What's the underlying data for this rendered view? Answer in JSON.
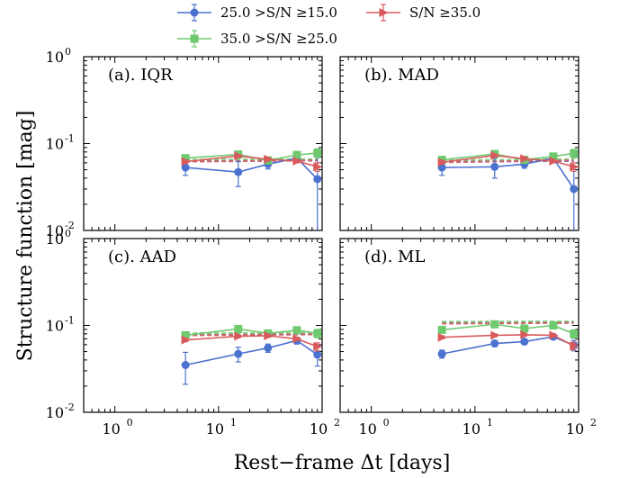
{
  "chart_data": {
    "type": "line",
    "xscale": "log",
    "yscale": "log",
    "xlim": [
      0.5,
      100
    ],
    "ylim": [
      0.01,
      1
    ],
    "x_ticks": [
      1,
      10,
      100
    ],
    "x_tick_labels": [
      "10",
      "10",
      "10"
    ],
    "x_tick_exponents": [
      "0",
      "1",
      "2"
    ],
    "y_ticks": [
      0.01,
      0.1,
      1
    ],
    "y_tick_labels": [
      "10",
      "10",
      "10"
    ],
    "y_tick_exponents": [
      "-2",
      "-1",
      "0"
    ],
    "xlabel": "Rest−frame Δt [days]",
    "ylabel": "Structure function [mag]",
    "grid": false,
    "legend": {
      "placement": "top-outside",
      "entries": [
        {
          "label": "25.0 >S/N ≥15.0",
          "color": "#4c72d0",
          "marker": "circle"
        },
        {
          "label": "35.0 >S/N ≥25.0",
          "color": "#6fc96f",
          "marker": "square"
        },
        {
          "label": "S/N ≥35.0",
          "color": "#d9595c",
          "marker": "triangle-right"
        }
      ]
    },
    "panels": [
      {
        "label": "(a). IQR",
        "series": [
          {
            "name": "25.0 >S/N ≥15.0",
            "color": "#4c72d0",
            "marker": "circle",
            "x": [
              4.8,
              15.5,
              30.0,
              57.0,
              90.0
            ],
            "y": [
              0.053,
              0.047,
              0.058,
              0.068,
              0.039
            ],
            "err": [
              0.01,
              0.015,
              0.007,
              0.006,
              0.03
            ]
          },
          {
            "name": "35.0 >S/N ≥25.0",
            "color": "#6fc96f",
            "marker": "square",
            "x": [
              4.8,
              15.5,
              30.0,
              57.0,
              90.0
            ],
            "y": [
              0.068,
              0.075,
              0.064,
              0.074,
              0.078
            ],
            "err": [
              0.004,
              0.004,
              0.003,
              0.004,
              0.009
            ]
          },
          {
            "name": "S/N ≥35.0",
            "color": "#d9595c",
            "marker": "triangle-right",
            "x": [
              4.8,
              15.5,
              30.0,
              57.0,
              90.0
            ],
            "y": [
              0.062,
              0.072,
              0.066,
              0.063,
              0.054
            ],
            "err": [
              0.003,
              0.003,
              0.003,
              0.003,
              0.006
            ]
          }
        ],
        "dashed": [
          {
            "color": "#4c72d0",
            "x": [
              4.8,
              90.0
            ],
            "y": [
              0.063,
              0.064
            ]
          },
          {
            "color": "#6fc96f",
            "x": [
              4.8,
              90.0
            ],
            "y": [
              0.065,
              0.066
            ]
          },
          {
            "color": "#d9595c",
            "x": [
              4.8,
              90.0
            ],
            "y": [
              0.062,
              0.064
            ]
          }
        ]
      },
      {
        "label": "(b). MAD",
        "series": [
          {
            "name": "25.0 >S/N ≥15.0",
            "color": "#4c72d0",
            "marker": "circle",
            "x": [
              4.8,
              15.5,
              30.0,
              57.0,
              90.0
            ],
            "y": [
              0.053,
              0.054,
              0.058,
              0.068,
              0.03
            ],
            "err": [
              0.01,
              0.014,
              0.006,
              0.006,
              0.025
            ]
          },
          {
            "name": "35.0 >S/N ≥25.0",
            "color": "#6fc96f",
            "marker": "square",
            "x": [
              4.8,
              15.5,
              30.0,
              57.0,
              90.0
            ],
            "y": [
              0.065,
              0.076,
              0.065,
              0.071,
              0.077
            ],
            "err": [
              0.004,
              0.004,
              0.003,
              0.004,
              0.009
            ]
          },
          {
            "name": "S/N ≥35.0",
            "color": "#d9595c",
            "marker": "triangle-right",
            "x": [
              4.8,
              15.5,
              30.0,
              57.0,
              90.0
            ],
            "y": [
              0.061,
              0.073,
              0.067,
              0.063,
              0.054
            ],
            "err": [
              0.003,
              0.003,
              0.003,
              0.003,
              0.006
            ]
          }
        ],
        "dashed": [
          {
            "color": "#4c72d0",
            "x": [
              4.8,
              90.0
            ],
            "y": [
              0.062,
              0.063
            ]
          },
          {
            "color": "#6fc96f",
            "x": [
              4.8,
              90.0
            ],
            "y": [
              0.064,
              0.066
            ]
          },
          {
            "color": "#d9595c",
            "x": [
              4.8,
              90.0
            ],
            "y": [
              0.061,
              0.064
            ]
          }
        ]
      },
      {
        "label": "(c). AAD",
        "series": [
          {
            "name": "25.0 >S/N ≥15.0",
            "color": "#4c72d0",
            "marker": "circle",
            "x": [
              4.8,
              15.5,
              30.0,
              57.0,
              90.0
            ],
            "y": [
              0.035,
              0.047,
              0.055,
              0.067,
              0.046
            ],
            "err": [
              0.014,
              0.009,
              0.006,
              0.006,
              0.012
            ]
          },
          {
            "name": "35.0 >S/N ≥25.0",
            "color": "#6fc96f",
            "marker": "square",
            "x": [
              4.8,
              15.5,
              30.0,
              57.0,
              90.0
            ],
            "y": [
              0.077,
              0.091,
              0.081,
              0.088,
              0.081
            ],
            "err": [
              0.004,
              0.005,
              0.004,
              0.004,
              0.009
            ]
          },
          {
            "name": "S/N ≥35.0",
            "color": "#d9595c",
            "marker": "triangle-right",
            "x": [
              4.8,
              15.5,
              30.0,
              57.0,
              90.0
            ],
            "y": [
              0.068,
              0.075,
              0.076,
              0.07,
              0.057
            ],
            "err": [
              0.003,
              0.003,
              0.003,
              0.003,
              0.006
            ]
          }
        ],
        "dashed": [
          {
            "color": "#4c72d0",
            "x": [
              4.8,
              90.0
            ],
            "y": [
              0.078,
              0.079
            ]
          },
          {
            "color": "#6fc96f",
            "x": [
              4.8,
              90.0
            ],
            "y": [
              0.081,
              0.082
            ]
          },
          {
            "color": "#d9595c",
            "x": [
              4.8,
              90.0
            ],
            "y": [
              0.077,
              0.079
            ]
          }
        ]
      },
      {
        "label": "(d). ML",
        "series": [
          {
            "name": "25.0 >S/N ≥15.0",
            "color": "#4c72d0",
            "marker": "circle",
            "x": [
              4.8,
              15.5,
              30.0,
              57.0,
              90.0
            ],
            "y": [
              0.047,
              0.062,
              0.065,
              0.074,
              0.059
            ],
            "err": [
              0.005,
              0.005,
              0.004,
              0.004,
              0.008
            ]
          },
          {
            "name": "35.0 >S/N ≥25.0",
            "color": "#6fc96f",
            "marker": "square",
            "x": [
              4.8,
              15.5,
              30.0,
              57.0,
              90.0
            ],
            "y": [
              0.089,
              0.103,
              0.092,
              0.1,
              0.08
            ],
            "err": [
              0.004,
              0.004,
              0.004,
              0.004,
              0.009
            ]
          },
          {
            "name": "S/N ≥35.0",
            "color": "#d9595c",
            "marker": "triangle-right",
            "x": [
              4.8,
              15.5,
              30.0,
              57.0,
              90.0
            ],
            "y": [
              0.073,
              0.077,
              0.078,
              0.077,
              0.058
            ],
            "err": [
              0.003,
              0.003,
              0.003,
              0.003,
              0.006
            ]
          }
        ],
        "dashed": [
          {
            "color": "#4c72d0",
            "x": [
              4.8,
              90.0
            ],
            "y": [
              0.107,
              0.108
            ]
          },
          {
            "color": "#6fc96f",
            "x": [
              4.8,
              90.0
            ],
            "y": [
              0.11,
              0.111
            ]
          },
          {
            "color": "#d9595c",
            "x": [
              4.8,
              90.0
            ],
            "y": [
              0.105,
              0.107
            ]
          }
        ]
      }
    ]
  }
}
